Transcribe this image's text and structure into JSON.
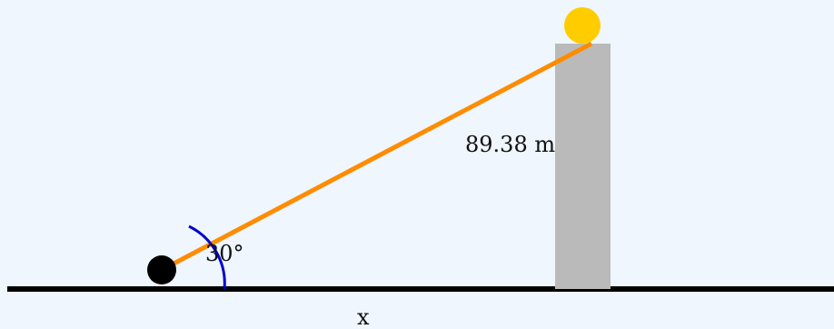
{
  "diagram": {
    "hypotenuse_label": "89.38 m",
    "angle_label": "30°",
    "base_label": "x",
    "angle_degrees": 30
  },
  "colors": {
    "background": "#eff6fd",
    "ground": "#000000",
    "building": "#bababa",
    "sun": "#ffcc00",
    "line_of_sight": "#ff8c00",
    "angle_arc": "#0000cc",
    "observer": "#000000"
  }
}
